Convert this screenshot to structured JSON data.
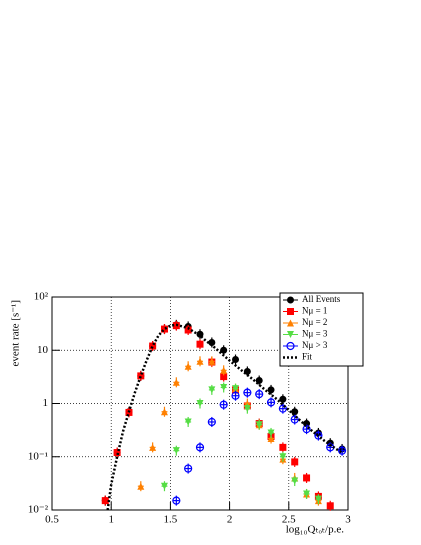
{
  "chart_data": {
    "type": "scatter",
    "xlabel": "log₁₀Qₜₒₜ/p.e.",
    "ylabel": "event rate [s⁻¹]",
    "xlim": [
      0.5,
      3
    ],
    "xticks": [
      0.5,
      1,
      1.5,
      2,
      2.5,
      3
    ],
    "ylim": [
      0.01,
      100
    ],
    "log_y": true,
    "yticks": [
      {
        "value": 0.01,
        "label": "10⁻²"
      },
      {
        "value": 0.1,
        "label": "10⁻¹"
      },
      1,
      10,
      {
        "value": 100,
        "label": "10²"
      }
    ],
    "grid": true,
    "legend": "top-right",
    "series": [
      {
        "name": "All Events",
        "color": "#000000",
        "marker": "circle",
        "x": [
          0.95,
          1.05,
          1.15,
          1.25,
          1.35,
          1.45,
          1.55,
          1.65,
          1.75,
          1.85,
          1.95,
          2.05,
          2.15,
          2.25,
          2.35,
          2.45,
          2.55,
          2.65,
          2.75,
          2.85,
          2.95
        ],
        "values": [
          0.015,
          0.12,
          0.7,
          3.3,
          12,
          25,
          30,
          28,
          20,
          14,
          10,
          6.7,
          4,
          2.7,
          1.8,
          1.2,
          0.7,
          0.42,
          0.28,
          0.18,
          0.14
        ]
      },
      {
        "name": "Nμ = 1",
        "color": "#ff0000",
        "marker": "square",
        "x": [
          0.95,
          1.05,
          1.15,
          1.25,
          1.35,
          1.45,
          1.55,
          1.65,
          1.75,
          1.85,
          1.95,
          2.05,
          2.15,
          2.25,
          2.35,
          2.45,
          2.55,
          2.65,
          2.75,
          2.85
        ],
        "values": [
          0.015,
          0.12,
          0.68,
          3.3,
          12,
          25,
          29,
          24,
          13,
          6,
          3.2,
          1.8,
          0.9,
          0.42,
          0.24,
          0.15,
          0.08,
          0.04,
          0.018,
          0.012
        ]
      },
      {
        "name": "Nμ = 2",
        "color": "#ff8000",
        "marker": "triangle-up",
        "x": [
          1.25,
          1.35,
          1.45,
          1.55,
          1.65,
          1.75,
          1.85,
          1.95,
          2.05,
          2.15,
          2.25,
          2.35,
          2.45,
          2.55,
          2.65,
          2.75
        ],
        "values": [
          0.028,
          0.15,
          0.7,
          2.5,
          5,
          6.2,
          6.2,
          4.2,
          1.9,
          1.0,
          0.4,
          0.22,
          0.09,
          0.04,
          0.02,
          0.015
        ]
      },
      {
        "name": "Nμ = 3",
        "color": "#55dd44",
        "marker": "triangle-down",
        "x": [
          1.45,
          1.55,
          1.65,
          1.75,
          1.85,
          1.95,
          2.05,
          2.15,
          2.25,
          2.35,
          2.45,
          2.55,
          2.65,
          2.75
        ],
        "values": [
          0.028,
          0.13,
          0.45,
          1.0,
          1.8,
          2.0,
          1.9,
          0.8,
          0.4,
          0.28,
          0.1,
          0.035,
          0.02,
          0.016
        ]
      },
      {
        "name": "Nμ > 3",
        "color": "#0000ff",
        "marker": "open-circle",
        "x": [
          1.55,
          1.65,
          1.75,
          1.85,
          1.95,
          2.05,
          2.15,
          2.25,
          2.35,
          2.45,
          2.55,
          2.65,
          2.75,
          2.85,
          2.95
        ],
        "values": [
          0.015,
          0.06,
          0.15,
          0.45,
          0.95,
          1.4,
          1.6,
          1.5,
          1.05,
          0.8,
          0.5,
          0.33,
          0.25,
          0.15,
          0.13
        ]
      },
      {
        "name": "Fit",
        "color": "#000000",
        "marker": "dotted-line",
        "x": [
          0.97,
          1.0,
          1.05,
          1.1,
          1.15,
          1.2,
          1.25,
          1.3,
          1.35,
          1.4,
          1.45,
          1.5,
          1.55,
          1.6,
          1.65,
          1.7,
          1.75,
          1.8,
          1.85,
          1.9,
          1.95,
          2.0,
          2.1,
          2.2,
          2.3,
          2.4,
          2.5,
          2.6,
          2.7,
          2.8,
          2.9,
          2.95
        ],
        "values": [
          0.01,
          0.03,
          0.1,
          0.3,
          0.7,
          1.6,
          3.3,
          6.5,
          12,
          19,
          25,
          29,
          30,
          28,
          26,
          22,
          19,
          15,
          12.5,
          10,
          8,
          6.4,
          4.2,
          2.8,
          1.8,
          1.2,
          0.75,
          0.47,
          0.3,
          0.2,
          0.14,
          0.12
        ]
      }
    ]
  }
}
